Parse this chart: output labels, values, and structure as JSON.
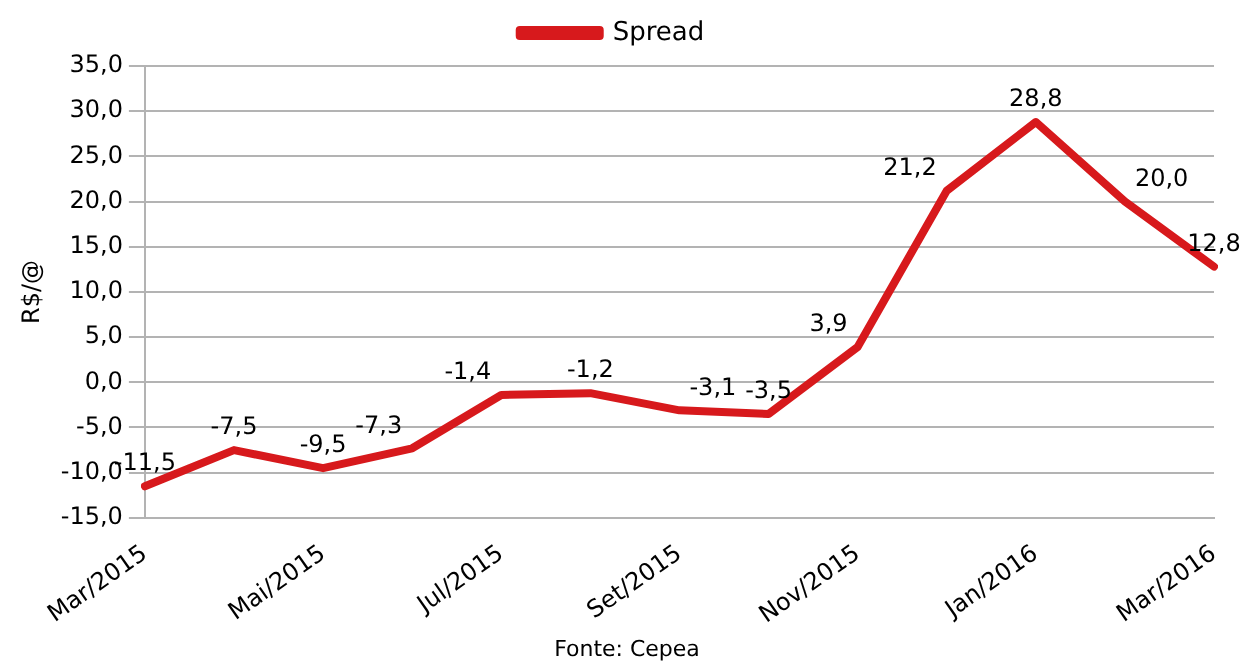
{
  "chart_data": {
    "type": "line",
    "ylabel": "R$/@",
    "categories": [
      "Mar/2015",
      null,
      "Mai/2015",
      null,
      "Jul/2015",
      null,
      "Set/2015",
      null,
      "Nov/2015",
      null,
      "Jan/2016",
      null,
      "Mar/2016"
    ],
    "series": [
      {
        "name": "Spread",
        "color": "#d7191c",
        "values": [
          -11.5,
          -7.5,
          -9.5,
          -7.3,
          -1.4,
          -1.2,
          -3.1,
          -3.5,
          3.9,
          21.2,
          28.8,
          20.0,
          12.8
        ],
        "value_labels": [
          "-11,5",
          "-7,5",
          "-9,5",
          "-7,3",
          "-1,4",
          "-1,2",
          "-3,1",
          "-3,5",
          "3,9",
          "21,2",
          "28,8",
          "20,0",
          "12,8"
        ]
      }
    ],
    "ylim": [
      -15,
      35
    ],
    "yticks": [
      {
        "value": -15,
        "label": "-15,0"
      },
      {
        "value": -10,
        "label": "-10,0"
      },
      {
        "value": -5,
        "label": "-5,0"
      },
      {
        "value": 0,
        "label": "0,0"
      },
      {
        "value": 5,
        "label": "5,0"
      },
      {
        "value": 10,
        "label": "10,0"
      },
      {
        "value": 15,
        "label": "15,0"
      },
      {
        "value": 20,
        "label": "20,0"
      },
      {
        "value": 25,
        "label": "25,0"
      },
      {
        "value": 30,
        "label": "30,0"
      },
      {
        "value": 35,
        "label": "35,0"
      }
    ],
    "grid": "y",
    "legend": "top",
    "marker": "none",
    "line_style": "solid",
    "annotations": [
      "Fonte: Cepea"
    ]
  }
}
